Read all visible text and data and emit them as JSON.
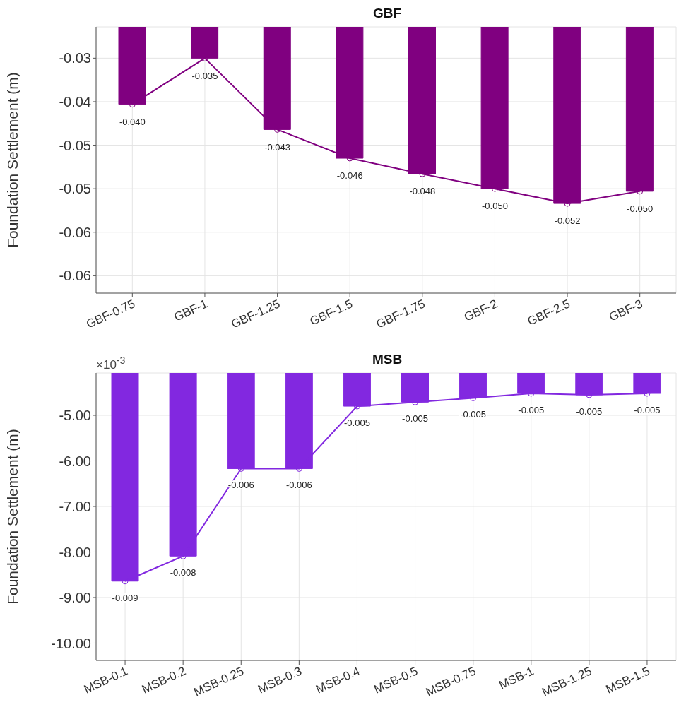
{
  "chart_data": [
    {
      "type": "bar",
      "title": "GBF",
      "ylabel": "Foundation Settlement (m)",
      "categories": [
        "GBF-0.75",
        "GBF-1",
        "GBF-1.25",
        "GBF-1.5",
        "GBF-1.75",
        "GBF-2",
        "GBF-2.5",
        "GBF-3"
      ],
      "series": [
        {
          "color": "#800080",
          "values": [
            -0.0403,
            -0.035,
            -0.0432,
            -0.0465,
            -0.0483,
            -0.05,
            -0.0517,
            -0.0503
          ]
        },
        {
          "type": "line",
          "color": "#800080",
          "marker": "circle",
          "values": [
            -0.0403,
            -0.035,
            -0.0432,
            -0.0465,
            -0.0483,
            -0.05,
            -0.0517,
            -0.0503
          ],
          "value_labels": [
            "-0.040",
            "-0.035",
            "-0.043",
            "-0.046",
            "-0.048",
            "-0.050",
            "-0.052",
            "-0.050"
          ]
        }
      ],
      "ylim": [
        -0.062,
        -0.0314
      ],
      "yticks": [
        {
          "value": -0.035,
          "label": "-0.03"
        },
        {
          "value": -0.04,
          "label": "-0.04"
        },
        {
          "value": -0.045,
          "label": "-0.05"
        },
        {
          "value": -0.05,
          "label": "-0.05"
        },
        {
          "value": -0.055,
          "label": "-0.06"
        },
        {
          "value": -0.06,
          "label": "-0.06"
        }
      ],
      "grid": true
    },
    {
      "type": "bar",
      "title": "MSB",
      "ylabel": "Foundation Settlement (m)",
      "annotations": [
        "×10$^{-3}$",
        {
          "text": "-0.009",
          "x": "MSB-0.1",
          "y": -8.64
        },
        {
          "text": "-0.008",
          "x": "MSB-0.2",
          "y": -8.09
        },
        {
          "text": "-0.006",
          "x": "MSB-0.25",
          "y": -6.17
        },
        {
          "text": "-0.006",
          "x": "MSB-0.3",
          "y": -6.17
        },
        {
          "text": "-0.005",
          "x": "MSB-0.4",
          "y": -4.8
        },
        {
          "text": "-0.005",
          "x": "MSB-0.5",
          "y": -4.71
        },
        {
          "text": "-0.005",
          "x": "MSB-0.75",
          "y": -4.62
        },
        {
          "text": "-0.005",
          "x": "MSB-1",
          "y": -4.52
        },
        {
          "text": "-0.005",
          "x": "MSB-1.25",
          "y": -4.55
        },
        {
          "text": "-0.005",
          "x": "MSB-1.5",
          "y": -4.52
        }
      ],
      "categories": [
        "MSB-0.1",
        "MSB-0.2",
        "MSB-0.25",
        "MSB-0.3",
        "MSB-0.4",
        "MSB-0.5",
        "MSB-0.75",
        "MSB-1",
        "MSB-1.25",
        "MSB-1.5"
      ],
      "series": [
        {
          "color": "#8228e0",
          "values": [
            -8.64,
            -8.09,
            -6.17,
            -6.17,
            -4.8,
            -4.71,
            -4.62,
            -4.52,
            -4.55,
            -4.52
          ]
        },
        {
          "type": "line",
          "color": "#8228e0",
          "marker": "circle",
          "values": [
            -8.64,
            -8.09,
            -6.17,
            -6.17,
            -4.8,
            -4.71,
            -4.62,
            -4.52,
            -4.55,
            -4.52
          ]
        }
      ],
      "ylim": [
        -10.38,
        -4.07
      ],
      "yticks": [
        {
          "value": -5,
          "label": "-5.00"
        },
        {
          "value": -6,
          "label": "-6.00"
        },
        {
          "value": -7,
          "label": "-7.00"
        },
        {
          "value": -8,
          "label": "-8.00"
        },
        {
          "value": -9,
          "label": "-9.00"
        },
        {
          "value": -10,
          "label": "-10.00"
        }
      ],
      "grid": true
    }
  ]
}
